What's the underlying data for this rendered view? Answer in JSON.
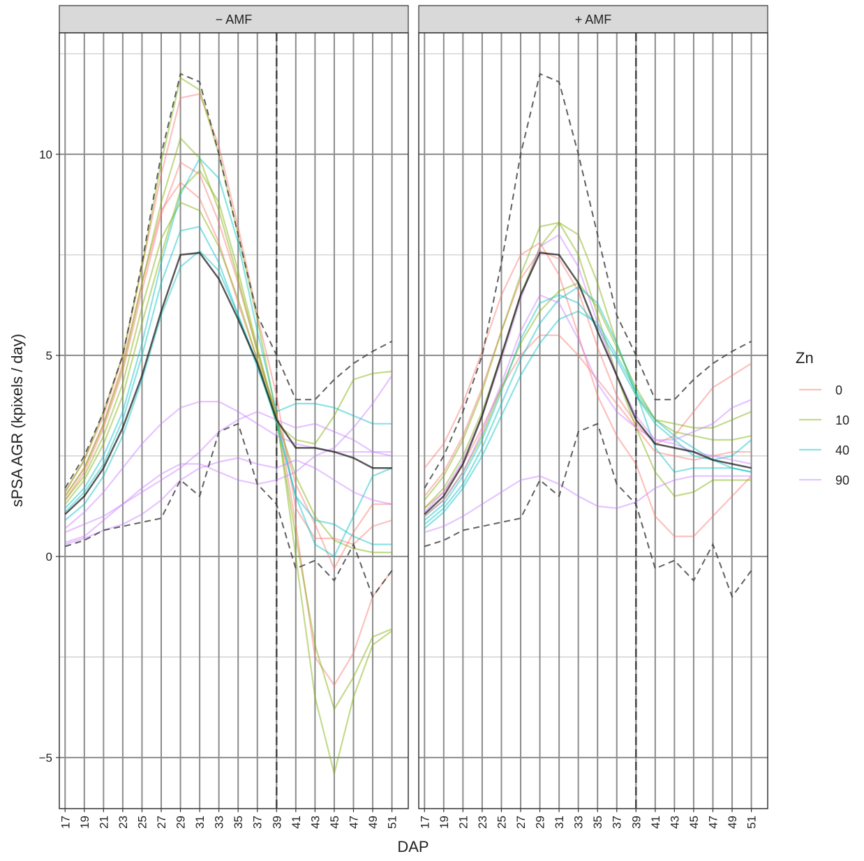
{
  "chart_data": {
    "type": "line",
    "x_label": "DAP",
    "y_label": "sPSA AGR (kpixels / day)",
    "x": [
      17,
      19,
      21,
      23,
      25,
      27,
      29,
      31,
      33,
      35,
      37,
      39,
      41,
      43,
      45,
      47,
      49,
      51
    ],
    "xlim": [
      16.4,
      52.7
    ],
    "xticks": [
      17,
      19,
      21,
      23,
      25,
      27,
      29,
      31,
      33,
      35,
      37,
      39,
      41,
      43,
      45,
      47,
      49,
      51
    ],
    "ylim": [
      -6.27,
      13.02
    ],
    "yticks": [
      {
        "value": -5,
        "label": "−5"
      },
      0,
      5,
      10
    ],
    "y_minor_grid": [
      -2.5,
      2.5,
      7.5,
      12.5
    ],
    "grid": true,
    "vline": 39,
    "panels": [
      "− AMF",
      "+ AMF"
    ],
    "legend": {
      "title": "Zn",
      "position": "right"
    },
    "series": [
      {
        "name": "0",
        "color": "#F8766D",
        "panels": [
          [
            [
              1.6,
              2.4,
              3.5,
              5.0,
              7.2,
              9.5,
              11.4,
              11.5,
              10.2,
              8.2,
              6.0,
              4.0,
              1.2,
              0.45,
              0.45,
              0.3,
              0.75,
              0.9
            ],
            [
              1.4,
              2.1,
              3.2,
              4.6,
              6.6,
              8.5,
              9.8,
              9.5,
              8.3,
              6.8,
              5.1,
              3.5,
              1.8,
              0.8,
              -0.3,
              0.6,
              1.3,
              1.3
            ],
            [
              1.5,
              2.2,
              3.3,
              4.8,
              6.8,
              8.6,
              9.3,
              8.9,
              7.8,
              6.3,
              4.9,
              3.6,
              0.8,
              -2.5,
              -3.2,
              -2.4,
              -1.0,
              -0.35
            ]
          ],
          [
            [
              2.2,
              2.8,
              3.8,
              5.1,
              6.5,
              7.5,
              7.8,
              7.0,
              5.5,
              4.0,
              3.0,
              2.3,
              1.0,
              0.5,
              0.5,
              1.0,
              1.5,
              2.0
            ],
            [
              1.5,
              2.1,
              3.0,
              4.2,
              5.6,
              6.9,
              7.6,
              7.4,
              6.6,
              5.2,
              4.0,
              3.3,
              2.8,
              3.0,
              3.6,
              4.2,
              4.5,
              4.8
            ],
            [
              1.2,
              1.6,
              2.3,
              3.2,
              4.2,
              5.0,
              5.5,
              5.5,
              5.0,
              4.4,
              3.8,
              3.2,
              2.6,
              2.5,
              2.4,
              2.5,
              2.6,
              2.6
            ]
          ]
        ]
      },
      {
        "name": "10",
        "color": "#7CAE00",
        "panels": [
          [
            [
              1.6,
              2.4,
              3.6,
              5.0,
              7.2,
              9.8,
              11.9,
              11.6,
              10.0,
              8.0,
              5.9,
              3.5,
              0.0,
              -3.5,
              -5.4,
              -3.5,
              -2.2,
              -1.85
            ],
            [
              1.5,
              2.2,
              3.3,
              4.7,
              6.8,
              8.8,
              10.4,
              9.9,
              8.6,
              6.9,
              5.1,
              3.4,
              0.5,
              -2.2,
              -3.8,
              -3.0,
              -2.0,
              -1.8
            ],
            [
              1.4,
              2.0,
              3.0,
              4.3,
              6.2,
              7.9,
              8.8,
              8.6,
              7.7,
              6.4,
              4.9,
              3.3,
              2.9,
              2.8,
              3.5,
              4.4,
              4.55,
              4.6
            ],
            [
              1.3,
              1.9,
              2.8,
              4.0,
              5.8,
              7.5,
              9.1,
              9.6,
              8.8,
              7.1,
              5.2,
              3.4,
              2.0,
              1.0,
              0.4,
              0.2,
              0.1,
              0.1
            ]
          ],
          [
            [
              1.4,
              2.0,
              2.9,
              4.1,
              5.6,
              7.0,
              8.2,
              8.3,
              7.5,
              6.0,
              4.5,
              3.2,
              2.1,
              1.5,
              1.6,
              1.9,
              1.9,
              1.9
            ],
            [
              1.2,
              1.7,
              2.5,
              3.6,
              5.0,
              6.5,
              7.7,
              8.3,
              8.0,
              6.8,
              5.3,
              4.0,
              3.4,
              3.3,
              3.2,
              3.2,
              3.4,
              3.6
            ],
            [
              1.0,
              1.4,
              2.1,
              3.0,
              4.2,
              5.3,
              6.1,
              6.6,
              6.8,
              6.2,
              5.2,
              4.2,
              3.4,
              3.1,
              3.0,
              2.9,
              2.9,
              3.0
            ]
          ]
        ]
      },
      {
        "name": "40",
        "color": "#00BFC4",
        "panels": [
          [
            [
              1.2,
              1.7,
              2.5,
              3.6,
              5.3,
              7.3,
              9.0,
              9.9,
              9.4,
              7.8,
              5.6,
              3.6,
              3.8,
              3.8,
              3.7,
              3.5,
              3.3,
              3.3
            ],
            [
              1.1,
              1.6,
              2.3,
              3.4,
              5.0,
              6.8,
              8.1,
              8.2,
              7.3,
              6.0,
              4.7,
              3.4,
              1.5,
              0.3,
              0.0,
              1.0,
              2.0,
              2.2
            ],
            [
              0.9,
              1.3,
              2.0,
              3.0,
              4.4,
              6.0,
              7.2,
              7.6,
              7.1,
              6.0,
              4.8,
              3.3,
              1.5,
              0.9,
              0.8,
              0.5,
              0.3,
              0.3
            ]
          ],
          [
            [
              0.9,
              1.3,
              2.0,
              2.9,
              4.1,
              5.4,
              6.3,
              6.5,
              6.3,
              5.7,
              4.9,
              4.0,
              3.3,
              2.9,
              2.5,
              2.4,
              2.5,
              2.9
            ],
            [
              0.8,
              1.2,
              1.8,
              2.7,
              3.8,
              4.9,
              5.8,
              6.4,
              6.7,
              6.3,
              5.3,
              4.1,
              2.7,
              2.1,
              2.2,
              2.2,
              2.2,
              2.1
            ],
            [
              0.7,
              1.1,
              1.7,
              2.5,
              3.5,
              4.5,
              5.3,
              5.9,
              6.1,
              5.8,
              5.0,
              4.1,
              3.4,
              3.0,
              2.7,
              2.4,
              2.2,
              2.1
            ]
          ]
        ]
      },
      {
        "name": "90",
        "color": "#C77CFF",
        "panels": [
          [
            [
              0.7,
              1.1,
              1.6,
              2.2,
              2.8,
              3.3,
              3.7,
              3.85,
              3.85,
              3.6,
              3.3,
              3.0,
              2.8,
              2.7,
              2.6,
              2.6,
              2.6,
              2.6
            ],
            [
              0.35,
              0.5,
              0.9,
              1.3,
              1.7,
              2.05,
              2.3,
              2.3,
              2.1,
              1.9,
              1.8,
              1.9,
              2.1,
              2.5,
              2.7,
              3.2,
              3.8,
              4.5
            ],
            [
              0.3,
              0.45,
              0.65,
              0.8,
              1.05,
              1.4,
              1.9,
              2.2,
              2.35,
              2.45,
              2.3,
              2.2,
              2.4,
              2.2,
              1.9,
              1.6,
              1.4,
              1.3
            ],
            [
              0.6,
              0.8,
              1.0,
              1.3,
              1.6,
              1.9,
              2.2,
              2.6,
              3.1,
              3.4,
              3.6,
              3.4,
              3.2,
              3.3,
              3.1,
              2.9,
              2.6,
              2.5
            ]
          ],
          [
            [
              0.6,
              0.75,
              1.0,
              1.3,
              1.6,
              1.9,
              2.0,
              1.8,
              1.5,
              1.25,
              1.2,
              1.35,
              1.7,
              1.9,
              2.0,
              2.0,
              2.0,
              2.0
            ],
            [
              1.0,
              1.4,
              2.1,
              3.1,
              4.3,
              5.6,
              6.5,
              6.3,
              5.4,
              4.3,
              3.6,
              3.2,
              2.9,
              2.9,
              3.1,
              3.3,
              3.7,
              3.9
            ],
            [
              1.1,
              1.6,
              2.4,
              3.5,
              4.9,
              6.4,
              7.7,
              8.0,
              7.2,
              5.8,
              4.5,
              3.5,
              2.9,
              2.8,
              2.6,
              2.5,
              2.4,
              2.3
            ]
          ]
        ]
      }
    ],
    "reference_lines": [
      {
        "color": "#111111",
        "dashed": false,
        "panels": [
          [
            1.05,
            1.5,
            2.2,
            3.2,
            4.5,
            6.1,
            7.5,
            7.55,
            6.9,
            5.9,
            4.8,
            3.4,
            2.7,
            2.7,
            2.6,
            2.45,
            2.2,
            2.2
          ],
          [
            1.05,
            1.5,
            2.3,
            3.5,
            5.0,
            6.5,
            7.55,
            7.5,
            6.8,
            5.6,
            4.5,
            3.4,
            2.8,
            2.7,
            2.6,
            2.4,
            2.3,
            2.2
          ]
        ]
      },
      {
        "color": "#444444",
        "dashed": true,
        "panels": [
          [
            1.7,
            2.5,
            3.6,
            5.0,
            7.3,
            10.0,
            12.0,
            11.8,
            10.0,
            8.0,
            6.0,
            5.0,
            3.9,
            3.9,
            4.4,
            4.8,
            5.1,
            5.35
          ],
          [
            1.7,
            2.5,
            3.6,
            5.0,
            7.3,
            10.0,
            12.0,
            11.8,
            10.0,
            8.0,
            6.0,
            5.0,
            3.9,
            3.9,
            4.4,
            4.8,
            5.1,
            5.35
          ]
        ]
      },
      {
        "color": "#444444",
        "dashed": true,
        "panels": [
          [
            0.25,
            0.4,
            0.65,
            0.75,
            0.85,
            0.95,
            1.9,
            1.5,
            3.1,
            3.3,
            1.8,
            1.3,
            -0.3,
            -0.1,
            -0.6,
            0.3,
            -1.0,
            -0.35
          ],
          [
            0.25,
            0.4,
            0.65,
            0.75,
            0.85,
            0.95,
            1.9,
            1.5,
            3.1,
            3.3,
            1.8,
            1.3,
            -0.3,
            -0.1,
            -0.6,
            0.3,
            -1.0,
            -0.35
          ]
        ]
      }
    ]
  }
}
